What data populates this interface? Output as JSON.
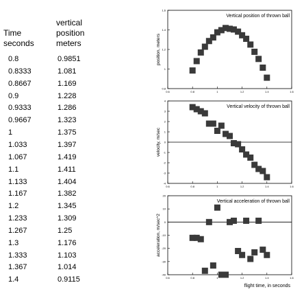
{
  "table": {
    "headers": {
      "time": "Time\nseconds",
      "position": "vertical\nposition\nmeters"
    },
    "rows": [
      [
        "0.8",
        "0.9851"
      ],
      [
        "0.8333",
        "1.081"
      ],
      [
        "0.8667",
        "1.169"
      ],
      [
        "0.9",
        "1.228"
      ],
      [
        "0.9333",
        "1.286"
      ],
      [
        "0.9667",
        "1.323"
      ],
      [
        "1",
        "1.375"
      ],
      [
        "1.033",
        "1.397"
      ],
      [
        "1.067",
        "1.419"
      ],
      [
        "1.1",
        "1.411"
      ],
      [
        "1.133",
        "1.404"
      ],
      [
        "1.167",
        "1.382"
      ],
      [
        "1.2",
        "1.345"
      ],
      [
        "1.233",
        "1.309"
      ],
      [
        "1.267",
        "1.25"
      ],
      [
        "1.3",
        "1.176"
      ],
      [
        "1.333",
        "1.103"
      ],
      [
        "1.367",
        "1.014"
      ],
      [
        "1.4",
        "0.9115"
      ]
    ]
  },
  "chart_data": [
    {
      "type": "scatter",
      "title": "Vertical position of thrown ball",
      "xlabel": "",
      "ylabel": "position, meters",
      "xlim": [
        0.6,
        1.6
      ],
      "ylim": [
        0.8,
        1.6
      ],
      "xticks": [
        "0.6",
        "0.8",
        "1",
        "1.2",
        "1.4",
        "1.6"
      ],
      "yticks": [
        "0.8",
        "1",
        "1.2",
        "1.4",
        "1.6"
      ],
      "x": [
        0.8,
        0.8333,
        0.8667,
        0.9,
        0.9333,
        0.9667,
        1,
        1.033,
        1.067,
        1.1,
        1.133,
        1.167,
        1.2,
        1.233,
        1.267,
        1.3,
        1.333,
        1.367,
        1.4
      ],
      "y": [
        0.9851,
        1.081,
        1.169,
        1.228,
        1.286,
        1.323,
        1.375,
        1.397,
        1.419,
        1.411,
        1.404,
        1.382,
        1.345,
        1.309,
        1.25,
        1.176,
        1.103,
        1.014,
        0.9115
      ],
      "marker_color": "#3a3a3a"
    },
    {
      "type": "scatter",
      "title": "Vertical velocity  of thrown ball",
      "xlabel": "",
      "ylabel": "velocity, m/sec",
      "xlim": [
        0.6,
        1.6
      ],
      "ylim": [
        -4,
        4
      ],
      "xticks": [
        "0.6",
        "0.8",
        "1",
        "1.2",
        "1.4",
        "1.6"
      ],
      "yticks": [
        "-4",
        "-3",
        "-2",
        "-1",
        "0",
        "1",
        "2",
        "3",
        "4"
      ],
      "zero_line": true,
      "x": [
        0.8,
        0.8333,
        0.8667,
        0.9,
        0.9333,
        0.9667,
        1,
        1.033,
        1.067,
        1.1,
        1.133,
        1.167,
        1.2,
        1.233,
        1.267,
        1.3,
        1.333,
        1.367,
        1.4
      ],
      "y": [
        3.4,
        3.2,
        3.0,
        2.8,
        1.8,
        1.8,
        1.1,
        1.6,
        0.8,
        0.6,
        -0.1,
        -0.2,
        -0.7,
        -1.2,
        -1.5,
        -2.2,
        -2.6,
        -2.8,
        -3.4
      ],
      "marker_color": "#3a3a3a"
    },
    {
      "type": "scatter",
      "title": "Vertical acceleration of thrown ball",
      "xlabel": "flight time, in seconds",
      "ylabel": "acceleration, m/sec^2",
      "xlim": [
        0.6,
        1.6
      ],
      "ylim": [
        -40,
        20
      ],
      "xticks": [
        "0.6",
        "0.8",
        "1",
        "1.2",
        "1.4",
        "1.6"
      ],
      "yticks": [
        "-40",
        "-30",
        "-20",
        "-10",
        "0",
        "10",
        "20"
      ],
      "zero_line": true,
      "x": [
        0.8,
        0.8333,
        0.8667,
        0.9,
        0.9333,
        0.9667,
        1,
        1.033,
        1.067,
        1.1,
        1.133,
        1.167,
        1.2,
        1.233,
        1.267,
        1.3,
        1.333,
        1.367,
        1.4
      ],
      "y": [
        -12,
        -12,
        -13,
        -37,
        0,
        -33,
        11,
        -40,
        -40,
        0,
        1,
        -22,
        -25,
        1,
        -28,
        -23,
        1,
        -21,
        -25
      ],
      "marker_color": "#3a3a3a"
    }
  ]
}
